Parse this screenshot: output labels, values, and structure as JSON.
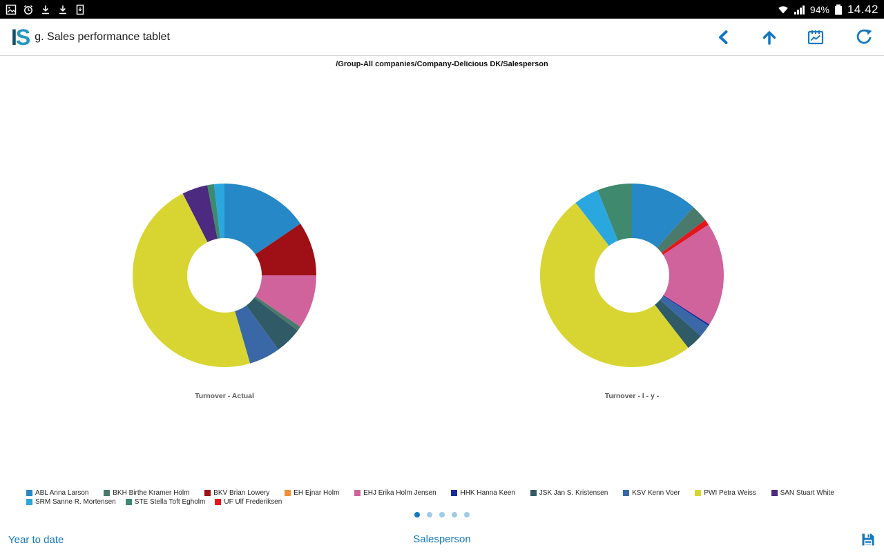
{
  "status_bar": {
    "battery_percent": "94%",
    "time": "14.42"
  },
  "header": {
    "logo_part1": "I",
    "logo_part2": "S",
    "title": "g. Sales performance tablet"
  },
  "breadcrumb": "/Group-All companies/Company-Delicious DK/Salesperson",
  "legend": {
    "items": [
      {
        "key": "ABL",
        "label": "ABL Anna Larson",
        "color": "#2688c6"
      },
      {
        "key": "BKH",
        "label": "BKH Birthe Kramer Holm",
        "color": "#4a7a6b"
      },
      {
        "key": "BKV",
        "label": "BKV Brian Lowery",
        "color": "#9e1015"
      },
      {
        "key": "EH",
        "label": "EH Ejnar Holm",
        "color": "#f09038"
      },
      {
        "key": "EHJ",
        "label": "EHJ Erika Holm Jensen",
        "color": "#d0639c"
      },
      {
        "key": "HHK",
        "label": "HHK Hanna Keen",
        "color": "#1b2d9b"
      },
      {
        "key": "JSK",
        "label": "JSK Jan S. Kristensen",
        "color": "#2f5a66"
      },
      {
        "key": "KSV",
        "label": "KSV Kenn Voer",
        "color": "#3a68a6"
      },
      {
        "key": "PWI",
        "label": "PWI Petra Weiss",
        "color": "#d8d532"
      },
      {
        "key": "SAN",
        "label": "SAN Stuart White",
        "color": "#4b2a80"
      },
      {
        "key": "SRM",
        "label": "SRM Sanne R. Mortensen",
        "color": "#2ba7df"
      },
      {
        "key": "STE",
        "label": "STE Stella Toft Egholm",
        "color": "#3f8a6e"
      },
      {
        "key": "UF",
        "label": "UF Ulf Frederiksen",
        "color": "#e3161c"
      }
    ]
  },
  "chart_data": [
    {
      "type": "pie",
      "donut": true,
      "title": "Turnover - Actual",
      "slices": [
        {
          "key": "ABL",
          "value": 15.5
        },
        {
          "key": "BKV",
          "value": 9.5
        },
        {
          "key": "EHJ",
          "value": 9.5
        },
        {
          "key": "BKH",
          "value": 0.8
        },
        {
          "key": "JSK",
          "value": 4.7
        },
        {
          "key": "KSV",
          "value": 5.5
        },
        {
          "key": "PWI",
          "value": 47
        },
        {
          "key": "SAN",
          "value": 4.5
        },
        {
          "key": "STE",
          "value": 1.2
        },
        {
          "key": "SRM",
          "value": 1.8
        }
      ]
    },
    {
      "type": "pie",
      "donut": true,
      "title": "Turnover - l - y -",
      "slices": [
        {
          "key": "ABL",
          "value": 11.7
        },
        {
          "key": "BKH",
          "value": 3
        },
        {
          "key": "UF",
          "value": 1
        },
        {
          "key": "EHJ",
          "value": 18.3
        },
        {
          "key": "HHK",
          "value": 0.3
        },
        {
          "key": "KSV",
          "value": 2.2
        },
        {
          "key": "JSK",
          "value": 3
        },
        {
          "key": "PWI",
          "value": 50
        },
        {
          "key": "SRM",
          "value": 4.4
        },
        {
          "key": "STE",
          "value": 6.1
        }
      ]
    }
  ],
  "pagination": {
    "count": 5,
    "active": 0
  },
  "footer": {
    "left_link": "Year to date",
    "center_link": "Salesperson"
  }
}
